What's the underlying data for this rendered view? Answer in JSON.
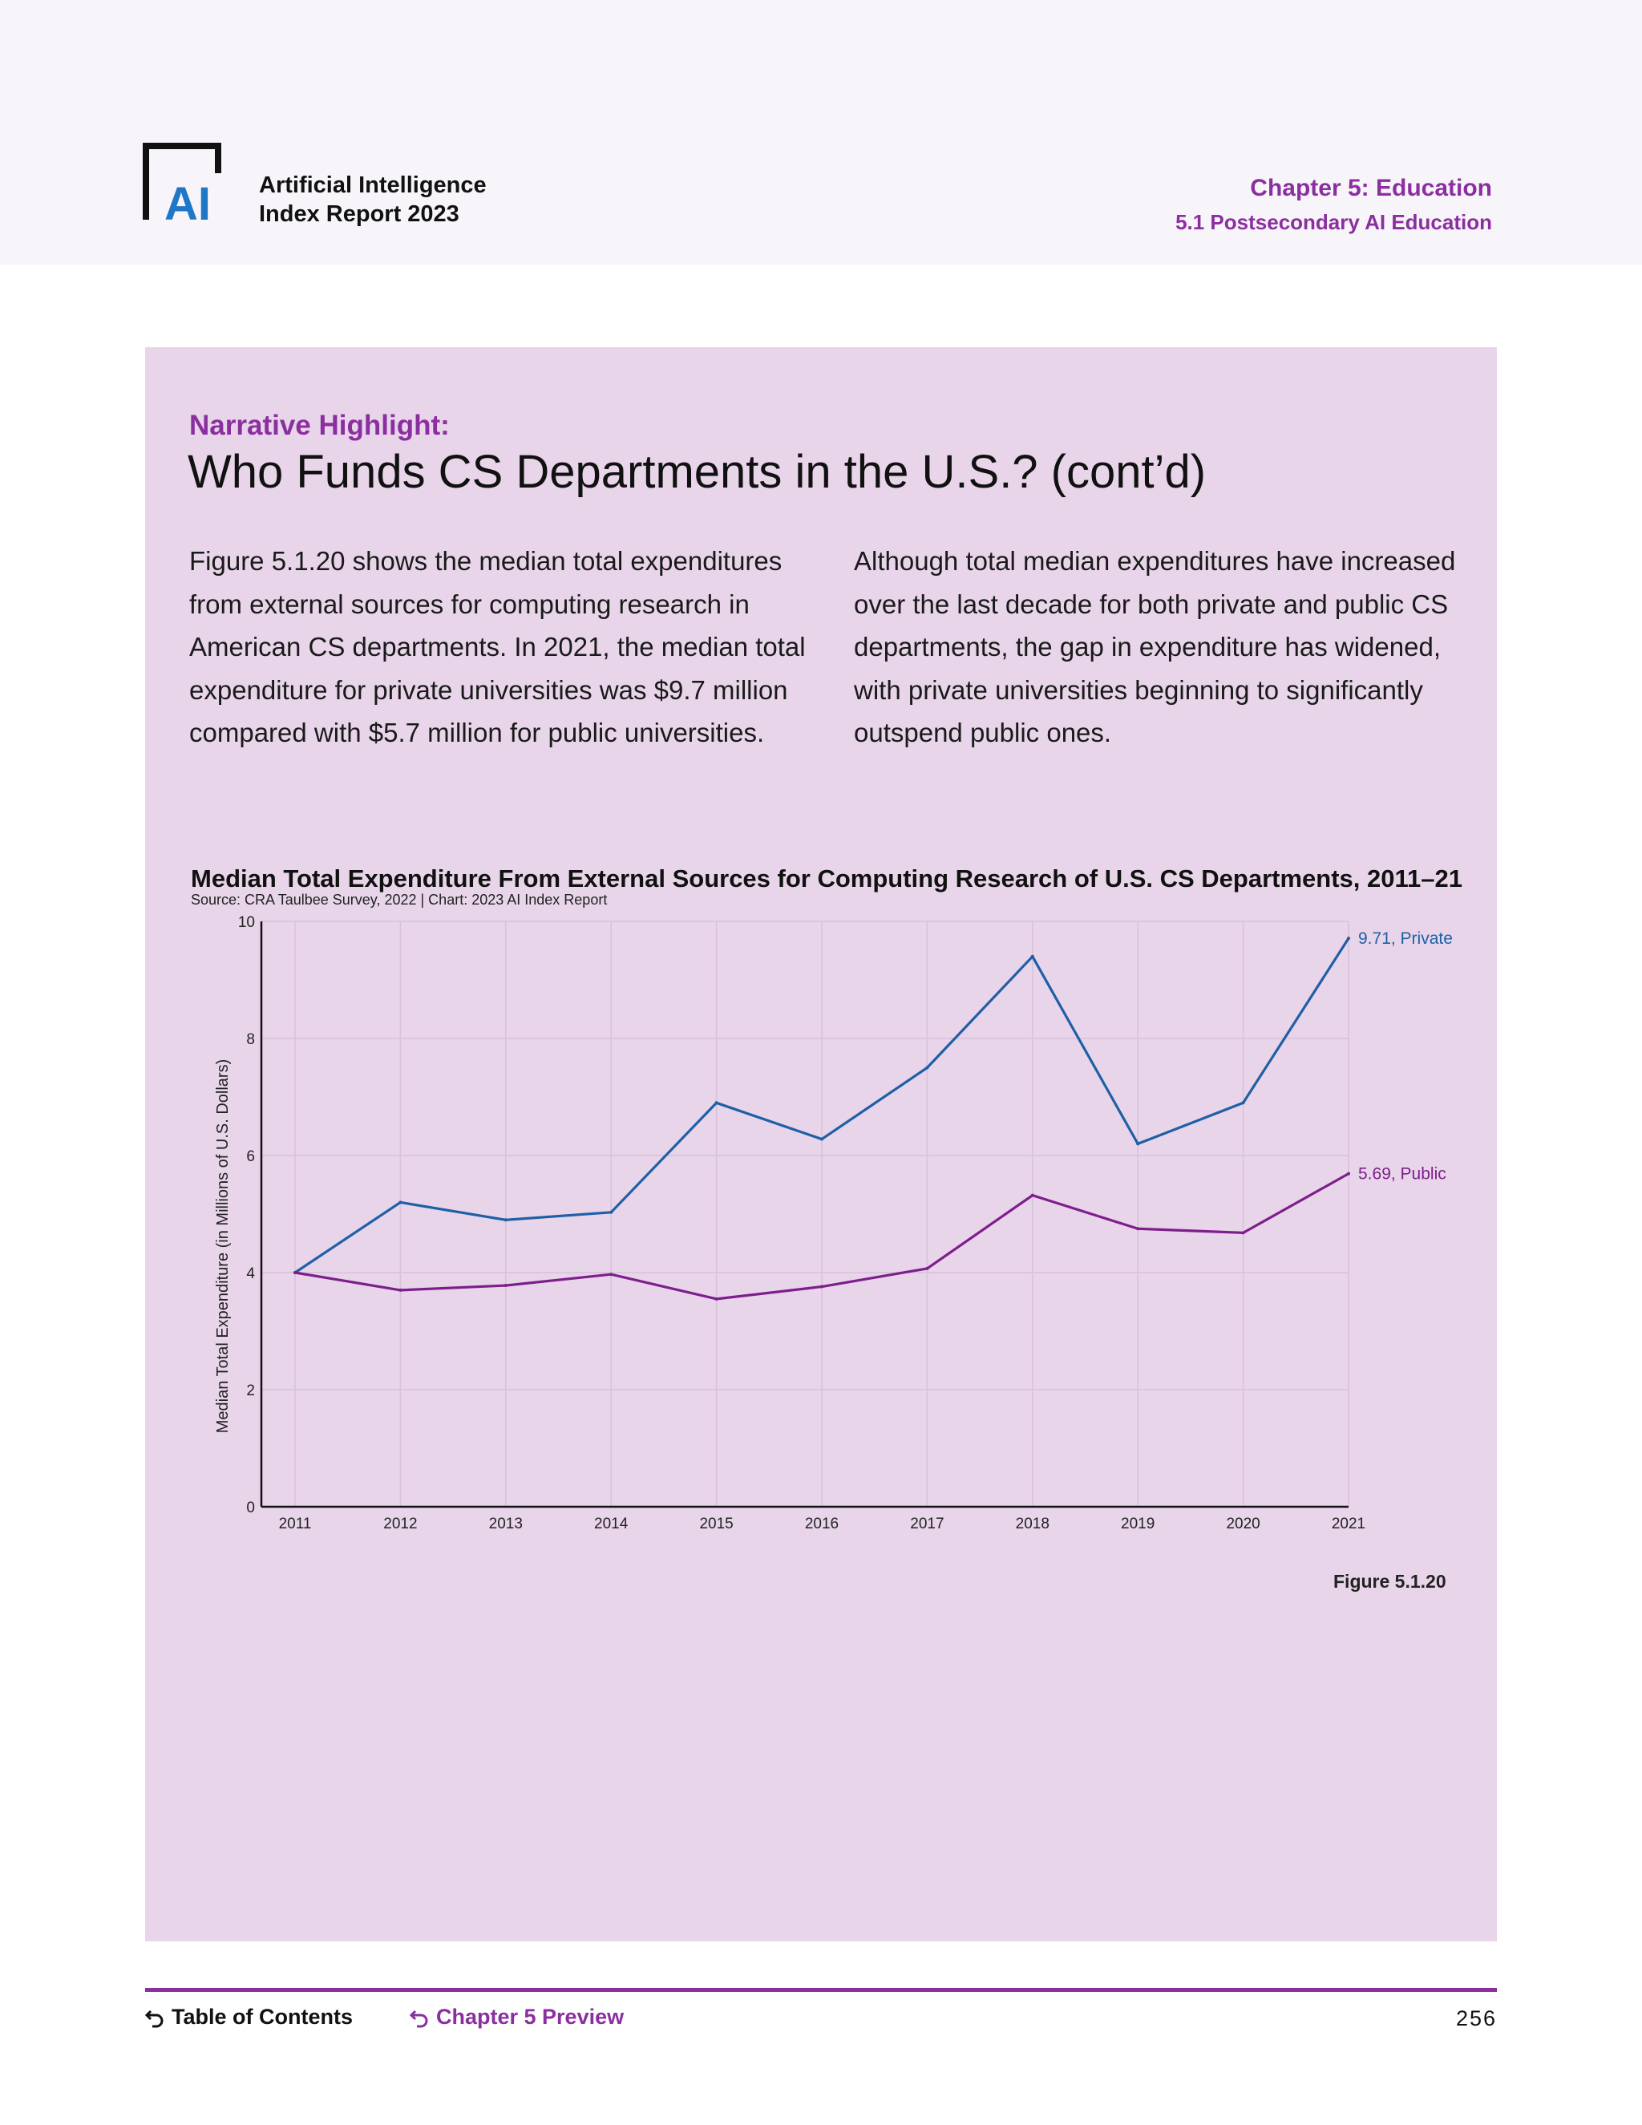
{
  "header": {
    "report_title_line1": "Artificial Intelligence",
    "report_title_line2": "Index Report 2023",
    "chapter": "Chapter 5: Education",
    "section": "5.1 Postsecondary AI Education",
    "logo_text": "AI"
  },
  "highlight": {
    "label": "Narrative Highlight:",
    "title": "Who Funds CS Departments in the U.S.? (cont’d)",
    "paragraph_left": "Figure 5.1.20 shows the median total expenditures from external sources for computing research in American CS departments. In 2021, the median total expenditure for private universities was $9.7 million compared with $5.7 million for public universities.",
    "paragraph_right": "Although total median expenditures have increased over the last decade for both private and public CS departments, the gap in expenditure has widened, with private universities beginning to significantly outspend public ones."
  },
  "chart_data": {
    "type": "line",
    "title": "Median Total Expenditure From External Sources for Computing Research of U.S. CS Departments, 2011–21",
    "source": "Source: CRA Taulbee Survey, 2022 | Chart: 2023 AI Index Report",
    "ylabel": "Median Total Expenditure (in Millions of U.S. Dollars)",
    "xlabel": "",
    "x": [
      "2011",
      "2012",
      "2013",
      "2014",
      "2015",
      "2016",
      "2017",
      "2018",
      "2019",
      "2020",
      "2021"
    ],
    "ylim": [
      0,
      10
    ],
    "yticks": [
      0,
      2,
      4,
      6,
      8,
      10
    ],
    "grid": true,
    "series": [
      {
        "name": "Private",
        "color": "#1f5fa6",
        "values": [
          4.0,
          5.2,
          4.9,
          5.03,
          6.9,
          6.28,
          7.5,
          9.4,
          6.2,
          6.9,
          9.71
        ],
        "end_label": "9.71,  Private"
      },
      {
        "name": "Public",
        "color": "#7e1e8c",
        "values": [
          4.0,
          3.7,
          3.78,
          3.97,
          3.55,
          3.76,
          4.07,
          5.32,
          4.75,
          4.68,
          5.69
        ],
        "end_label": "5.69, Public"
      }
    ]
  },
  "figure_label": "Figure 5.1.20",
  "footer": {
    "toc_label": "Table of Contents",
    "preview_label": "Chapter 5 Preview",
    "page_number": "256"
  },
  "colors": {
    "accent": "#8b2fa0",
    "panel_bg": "#e8d5ea",
    "header_bg": "#f8f5fa",
    "logo_blue": "#1f77c8"
  }
}
